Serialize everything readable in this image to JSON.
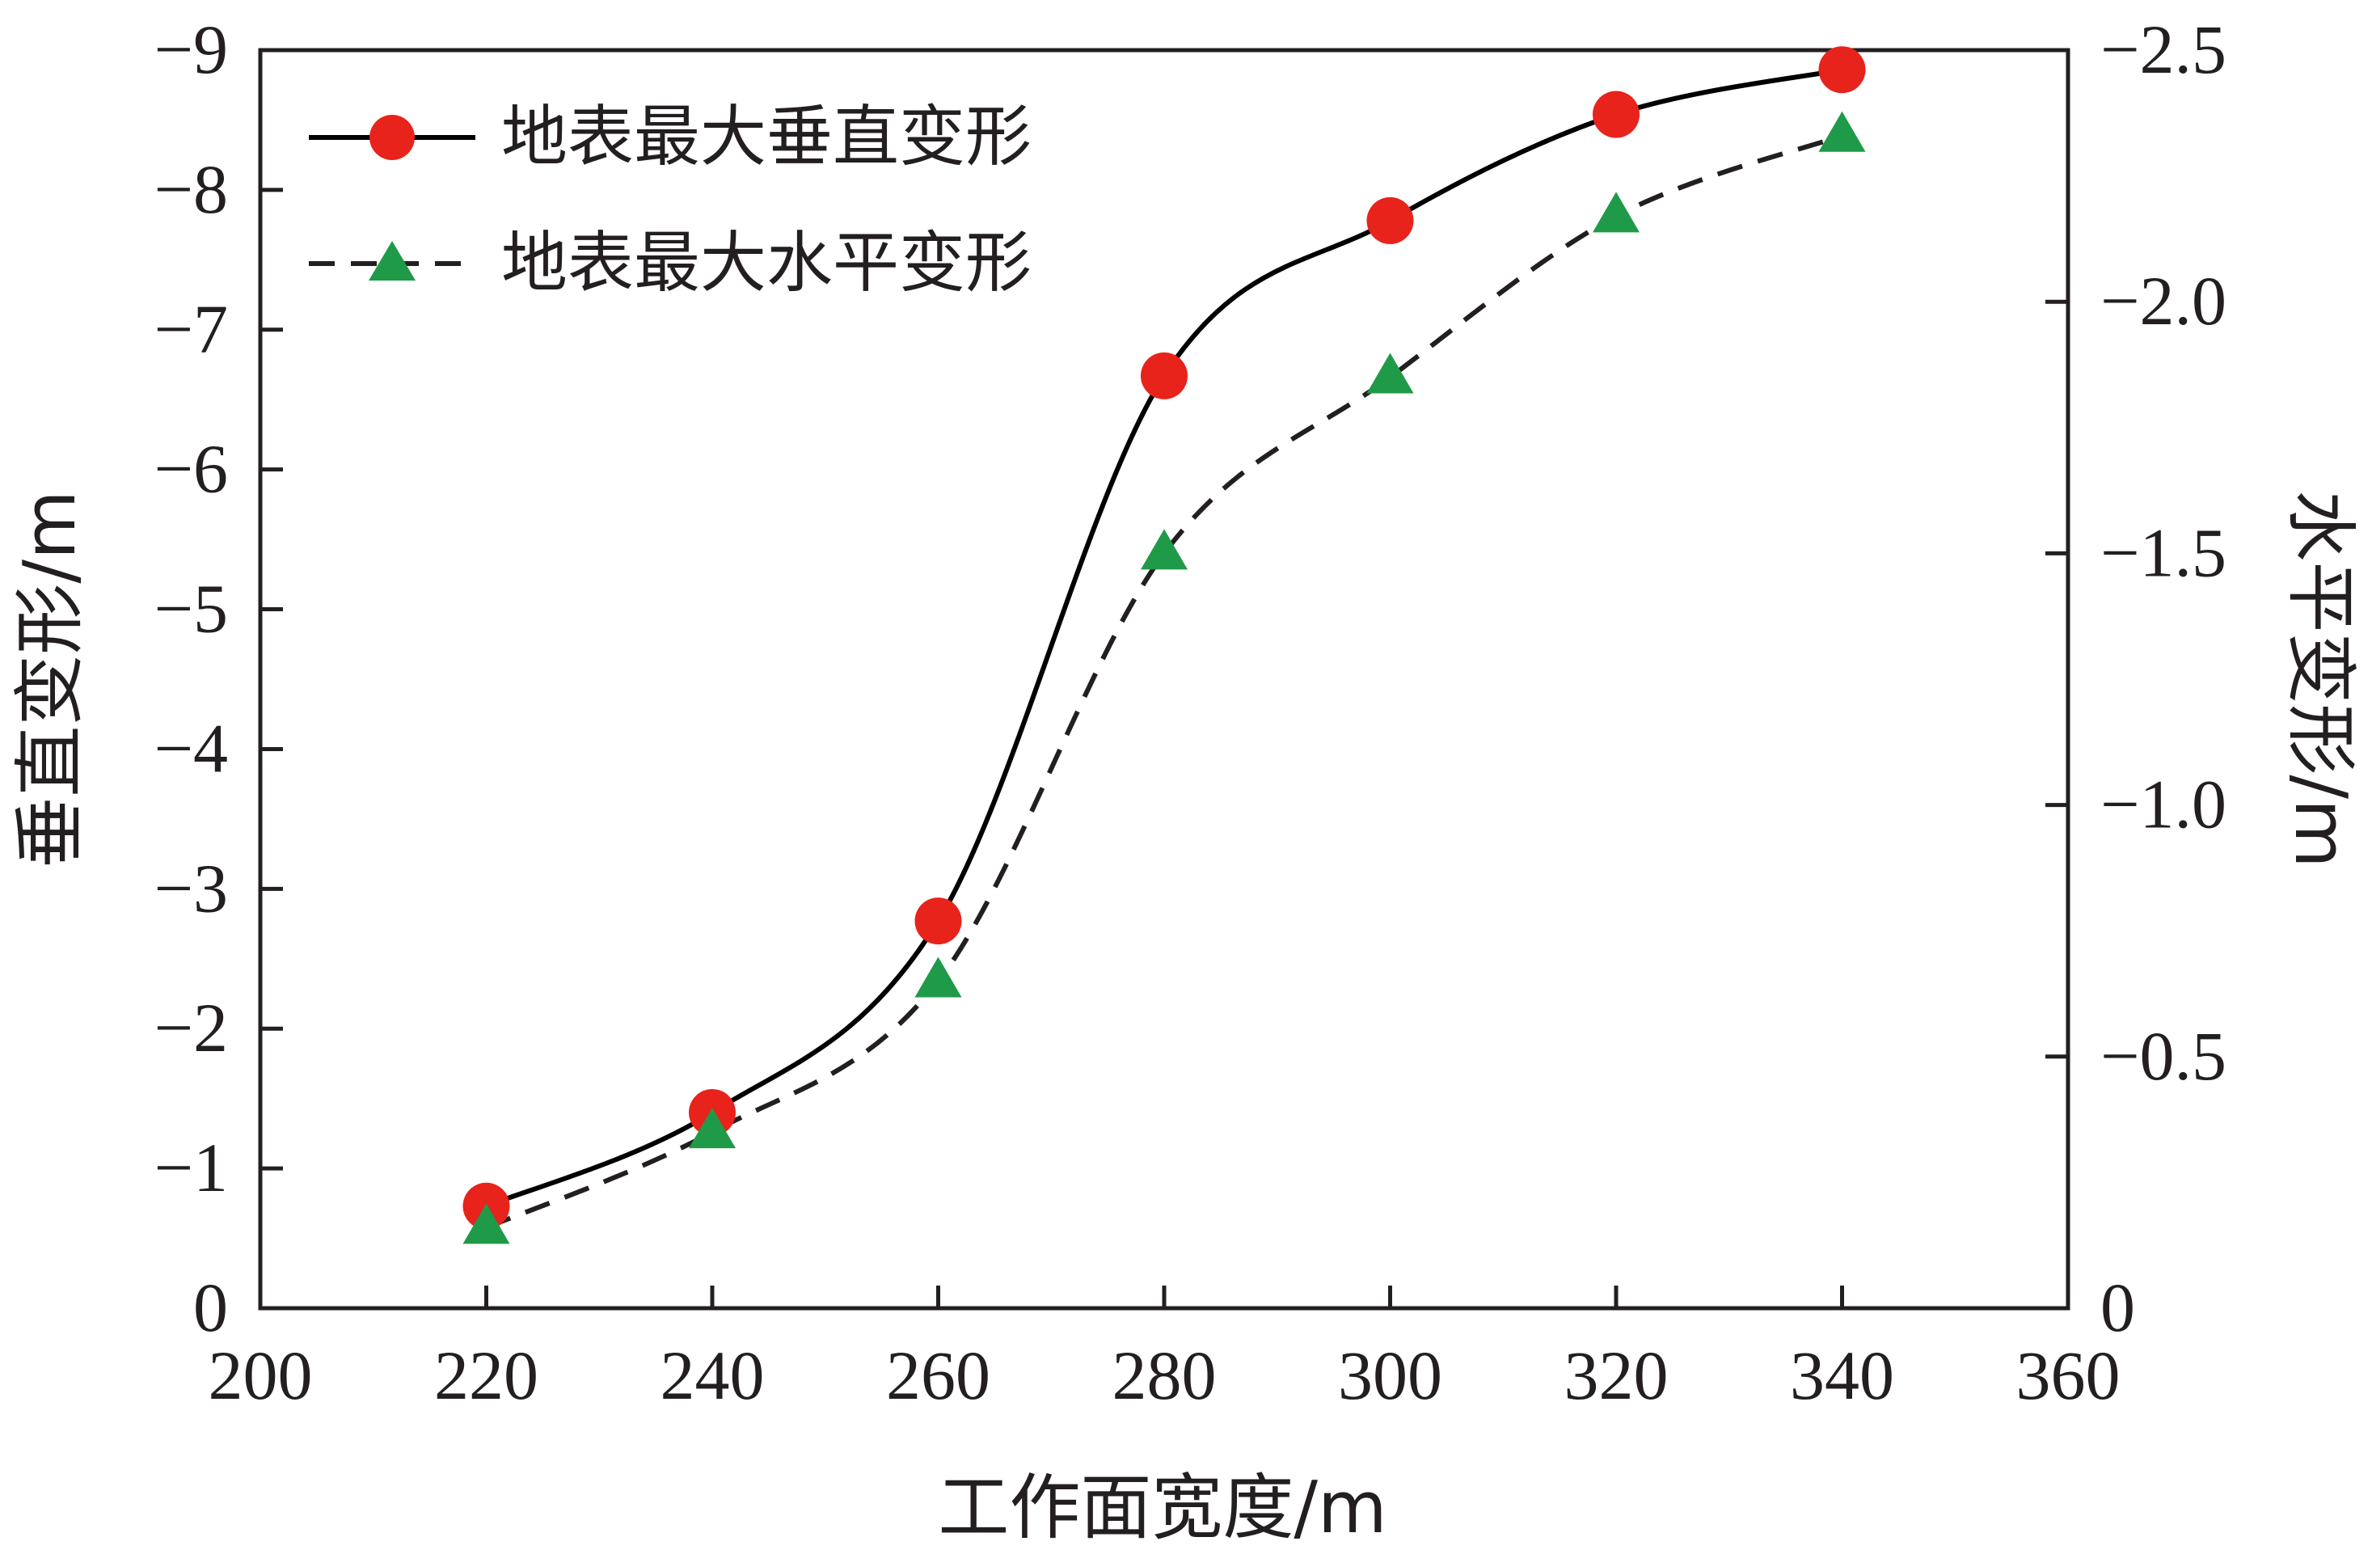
{
  "chart_data": {
    "type": "line",
    "xlabel": "工作面宽度/m",
    "ylabel_left": "垂直变形/m",
    "ylabel_right": "水平变形/m",
    "xlim": [
      200,
      360
    ],
    "x_ticks": [
      200,
      220,
      240,
      260,
      280,
      300,
      320,
      340,
      360
    ],
    "x_tick_labels": [
      "200",
      "220",
      "240",
      "260",
      "280",
      "300",
      "320",
      "340",
      "360"
    ],
    "ylim_left": [
      0,
      -9
    ],
    "y_ticks_left": [
      0,
      -1,
      -2,
      -3,
      -4,
      -5,
      -6,
      -7,
      -8,
      -9
    ],
    "y_tick_labels_left": [
      "0",
      "−1",
      "−2",
      "−3",
      "−4",
      "−5",
      "−6",
      "−7",
      "−8",
      "−9"
    ],
    "ylim_right": [
      0,
      -2.5
    ],
    "y_ticks_right": [
      0,
      -0.5,
      -1.0,
      -1.5,
      -2.0,
      -2.5
    ],
    "y_tick_labels_right": [
      "0",
      "−0.5",
      "−1.0",
      "−1.5",
      "−2.0",
      "−2.5"
    ],
    "grid": false,
    "legend_position": "top-left",
    "x": [
      220,
      240,
      260,
      280,
      300,
      320,
      340
    ],
    "series": [
      {
        "name": "地表最大垂直变形",
        "axis": "left",
        "values": [
          -0.73,
          -1.4,
          -2.77,
          -6.67,
          -7.78,
          -8.54,
          -8.86
        ],
        "color": "#e8231b",
        "line_color": "#000000",
        "line_style": "solid",
        "marker": "circle"
      },
      {
        "name": "地表最大水平变形",
        "axis": "right",
        "values": [
          -0.16,
          -0.35,
          -0.65,
          -1.5,
          -1.85,
          -2.17,
          -2.33
        ],
        "color": "#1f9a48",
        "line_color": "#231f20",
        "line_style": "dashed",
        "marker": "triangle"
      }
    ]
  }
}
